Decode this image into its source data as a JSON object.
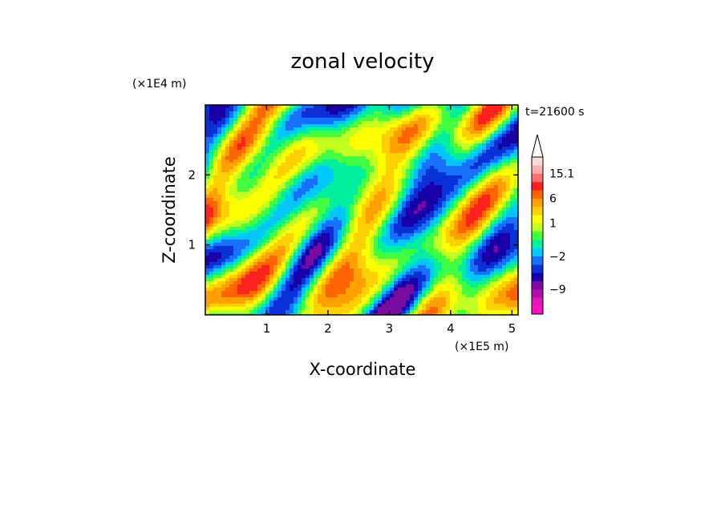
{
  "chart_data": {
    "type": "heatmap",
    "title": "zonal velocity",
    "xlabel": "X-coordinate",
    "ylabel": "Z-coordinate",
    "x_unit": "(×1E5 m)",
    "y_unit": "(×1E4 m)",
    "time_label": "t=21600 s",
    "xlim": [
      0.0,
      5.1
    ],
    "ylim": [
      0.0,
      3.0
    ],
    "x_ticks": [
      1,
      2,
      3,
      4,
      5
    ],
    "y_ticks": [
      1,
      2
    ],
    "colorbar": {
      "tick_labels": [
        "15.1",
        "6",
        "1",
        "−2",
        "−9"
      ],
      "colors": [
        "#ff10c8",
        "#e018b8",
        "#b010a8",
        "#7a0aa0",
        "#1a00a8",
        "#0a30d8",
        "#1870ff",
        "#00c8ff",
        "#00f0a0",
        "#40ff40",
        "#c0ff20",
        "#ffff00",
        "#ffd000",
        "#ffa000",
        "#ff6400",
        "#ff2020",
        "#ff7070",
        "#ffb0b0",
        "#ffd8d8"
      ],
      "extend": "max"
    }
  }
}
